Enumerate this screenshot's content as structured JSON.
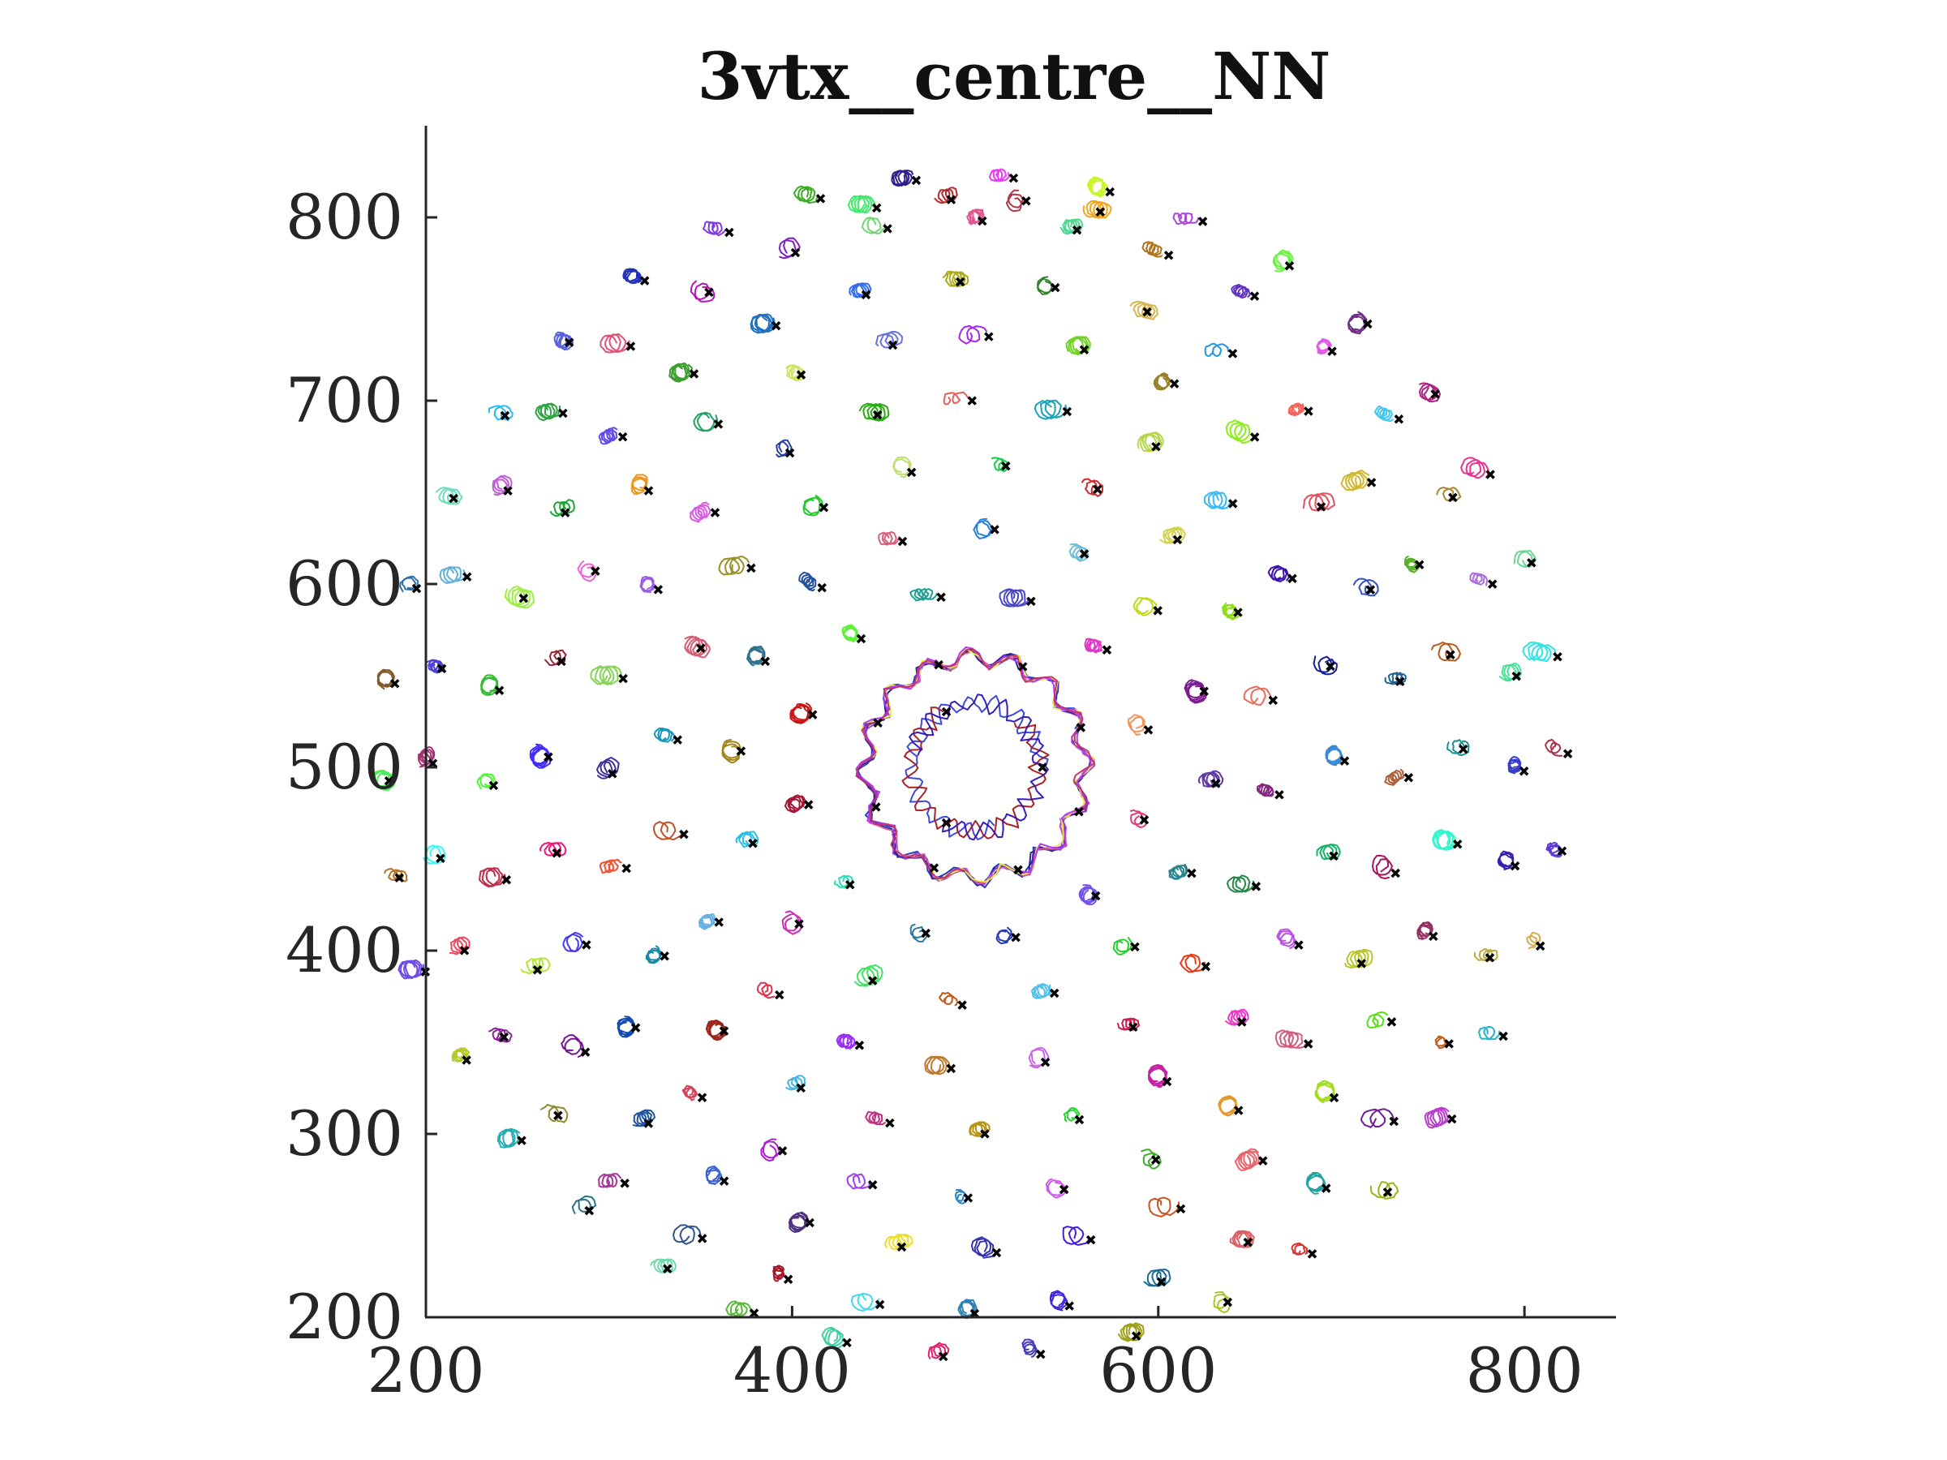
{
  "chart_data": {
    "type": "scatter",
    "title": "3vtx__centre__NN",
    "xlabel": "",
    "ylabel": "",
    "xlim": [
      200,
      850
    ],
    "ylim": [
      200,
      850
    ],
    "x_ticks": [
      200,
      400,
      600,
      800
    ],
    "y_ticks": [
      200,
      300,
      400,
      500,
      600,
      700,
      800
    ],
    "x_tick_labels": [
      "200",
      "400",
      "600",
      "800"
    ],
    "y_tick_labels": [
      "200",
      "300",
      "400",
      "500",
      "600",
      "700",
      "800"
    ],
    "grid": false,
    "legend": "none",
    "description_of_marks": "particle trajectories (coloured curves) with black x markers at final positions, arranged in concentric rings around a centre near (500, 500)",
    "centre": [
      500,
      500
    ],
    "rings": [
      {
        "radius": 35,
        "count": 3
      },
      {
        "radius": 60,
        "count": 8
      },
      {
        "radius": 95,
        "count": 12
      },
      {
        "radius": 130,
        "count": 16
      },
      {
        "radius": 165,
        "count": 20
      },
      {
        "radius": 200,
        "count": 24
      },
      {
        "radius": 235,
        "count": 28
      },
      {
        "radius": 265,
        "count": 32
      },
      {
        "radius": 298,
        "count": 36
      },
      {
        "radius": 322,
        "count": 38
      }
    ],
    "outer_arc": {
      "radius": 320,
      "start_deg": 78,
      "end_deg": 100,
      "count": 4
    }
  }
}
